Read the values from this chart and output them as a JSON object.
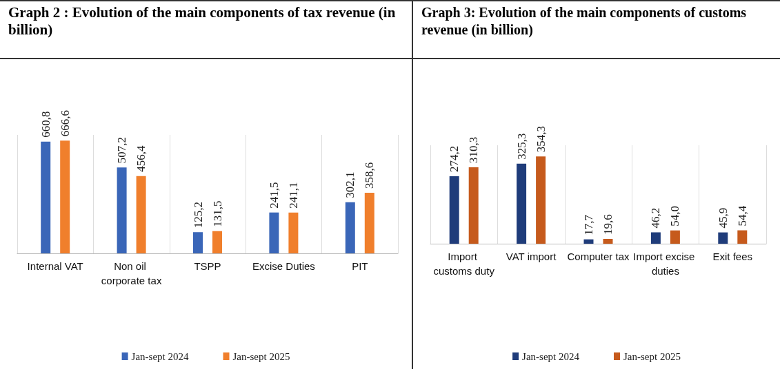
{
  "chart_data": [
    {
      "type": "bar",
      "title": "Graph 2 : Evolution of the main components of tax revenue (in billion)",
      "categories": [
        "Internal VAT",
        "Non oil corporate tax",
        "TSPP",
        "Excise Duties",
        "PIT"
      ],
      "series": [
        {
          "name": "Jan-sept 2024",
          "color": "#3a66b8",
          "values": [
            660.8,
            507.2,
            125.2,
            241.5,
            302.1
          ],
          "value_labels": [
            "660,8",
            "507,2",
            "125,2",
            "241,5",
            "302,1"
          ]
        },
        {
          "name": "Jan-sept 2025",
          "color": "#f07f2c",
          "values": [
            666.6,
            456.4,
            131.5,
            241.1,
            358.6
          ],
          "value_labels": [
            "666,6",
            "456,4",
            "131,5",
            "241,1",
            "358,6"
          ]
        }
      ],
      "grid": "x",
      "legend": "bottom"
    },
    {
      "type": "bar",
      "title": "Graph 3: Evolution of the main components of customs revenue (in billion)",
      "categories": [
        "Import customs duty",
        "VAT import",
        "Computer tax",
        "Import excise duties",
        "Exit fees"
      ],
      "series": [
        {
          "name": "Jan-sept 2024",
          "color": "#1f3c7a",
          "values": [
            274.2,
            325.3,
            17.7,
            46.2,
            45.9
          ],
          "value_labels": [
            "274,2",
            "325,3",
            "17,7",
            "46,2",
            "45,9"
          ]
        },
        {
          "name": "Jan-sept 2025",
          "color": "#c65a1c",
          "values": [
            310.3,
            354.3,
            19.6,
            54.0,
            54.4
          ],
          "value_labels": [
            "310,3",
            "354,3",
            "19,6",
            "54,0",
            "54,4"
          ]
        }
      ],
      "grid": "x",
      "legend": "bottom"
    }
  ]
}
